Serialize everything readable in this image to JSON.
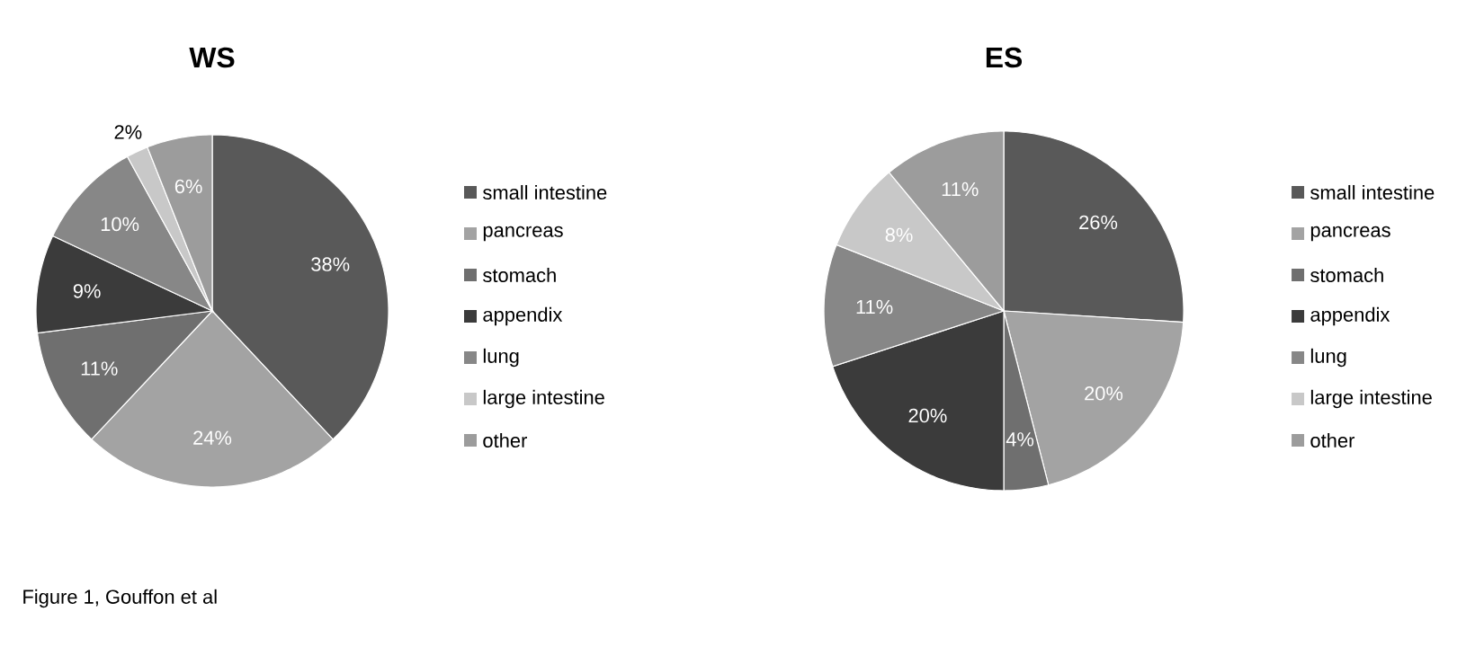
{
  "chart_data": [
    {
      "type": "pie",
      "title": "WS",
      "categories": [
        "small intestine",
        "pancreas",
        "stomach",
        "appendix",
        "lung",
        "large intestine",
        "other"
      ],
      "values": [
        38,
        24,
        11,
        9,
        10,
        2,
        6
      ],
      "value_labels": [
        "38%",
        "24%",
        "11%",
        "9%",
        "10%",
        "2%",
        "6%"
      ],
      "colors": [
        "#595959",
        "#a3a3a3",
        "#6f6f6f",
        "#3b3b3b",
        "#878787",
        "#c8c8c8",
        "#9c9c9c"
      ],
      "legend": "right",
      "annotations": [
        "Figure 1, Gouffon et al"
      ]
    },
    {
      "type": "pie",
      "title": "ES",
      "categories": [
        "small intestine",
        "pancreas",
        "stomach",
        "appendix",
        "lung",
        "large intestine",
        "other"
      ],
      "values": [
        26,
        20,
        4,
        20,
        11,
        8,
        11
      ],
      "value_labels": [
        "26%",
        "20%",
        "4%",
        "20%",
        "11%",
        "8%",
        "11%"
      ],
      "colors": [
        "#595959",
        "#a3a3a3",
        "#6f6f6f",
        "#3b3b3b",
        "#878787",
        "#c8c8c8",
        "#9c9c9c"
      ],
      "legend": "right"
    }
  ]
}
